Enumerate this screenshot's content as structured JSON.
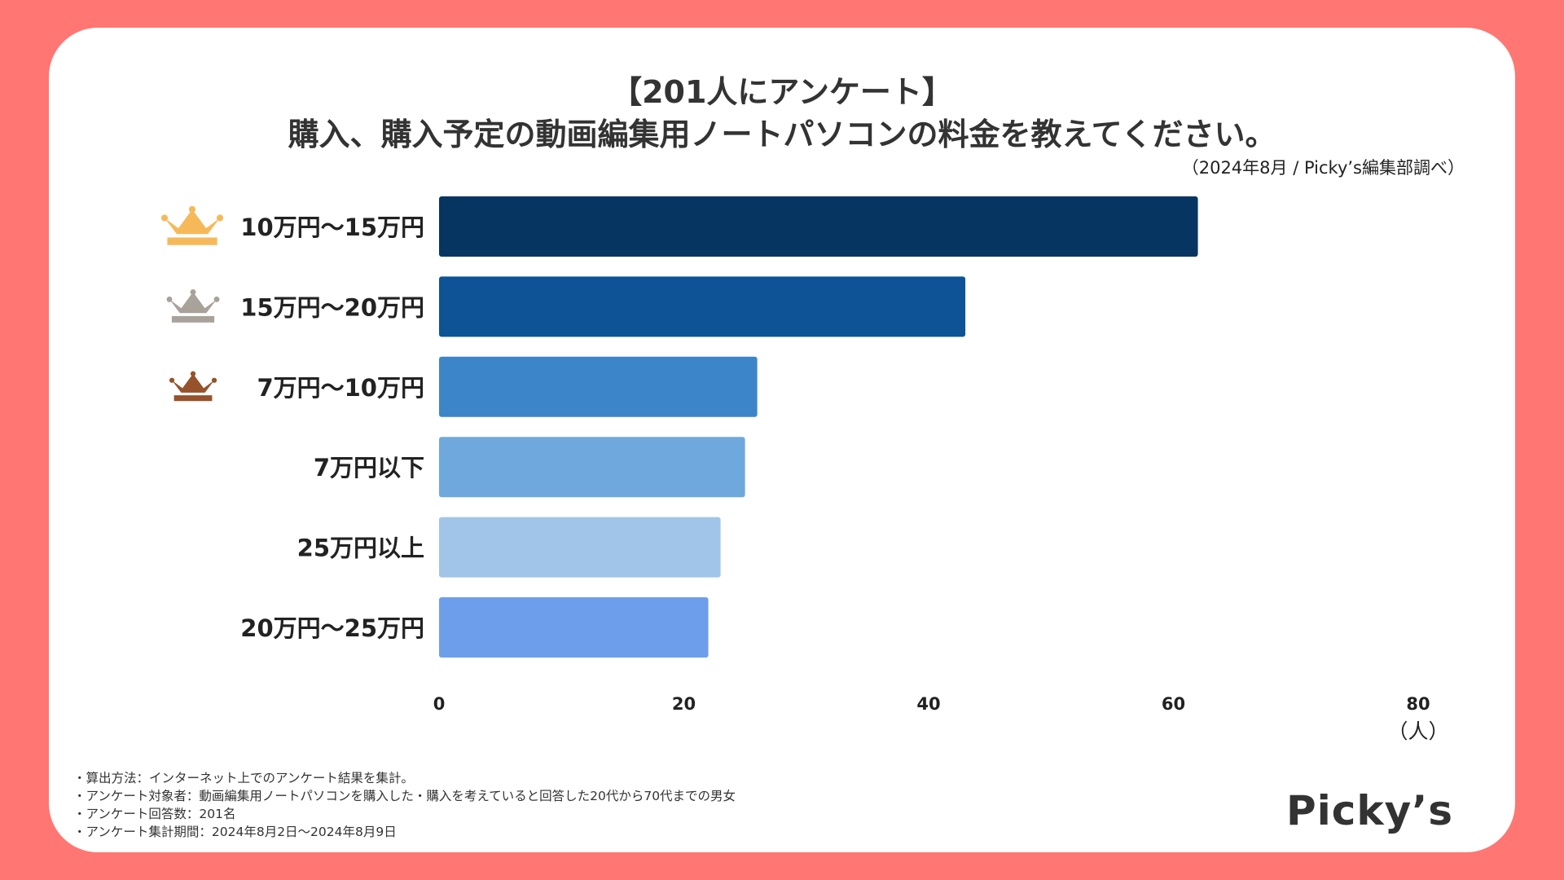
{
  "title_line1": "【201人にアンケート】",
  "title_line2": "購入、購入予定の動画編集用ノートパソコンの料金を教えてください。",
  "source": "（2024年8月 / Picky’s編集部調べ）",
  "chart_data": {
    "type": "bar",
    "orientation": "horizontal",
    "categories": [
      "10万円～15万円",
      "15万円～20万円",
      "7万円～10万円",
      "7万円以下",
      "25万円以上",
      "20万円～25万円"
    ],
    "values": [
      62,
      43,
      26,
      25,
      23,
      22
    ],
    "colors": [
      "#073561",
      "#0d5396",
      "#3d85c9",
      "#6fa8dc",
      "#a1c5e8",
      "#6d9eeb"
    ],
    "ranks": [
      "gold",
      "silver",
      "bronze",
      null,
      null,
      null
    ],
    "rank_colors": {
      "gold": "#f6b95a",
      "silver": "#a9a29a",
      "bronze": "#95522b"
    },
    "xlim": [
      0,
      80
    ],
    "xticks": [
      "0",
      "20",
      "40",
      "60",
      "80"
    ],
    "unit_label": "（人）"
  },
  "notes": [
    "・算出方法：インターネット上でのアンケート結果を集計。",
    "・アンケート対象者：動画編集用ノートパソコンを購入した・購入を考えていると回答した20代から70代までの男女",
    "・アンケート回答数：201名",
    "・アンケート集計期間：2024年8月2日～2024年8月9日"
  ],
  "logo": "Picky’s",
  "colors": {
    "frame": "#ff7672",
    "card": "#ffffff"
  }
}
